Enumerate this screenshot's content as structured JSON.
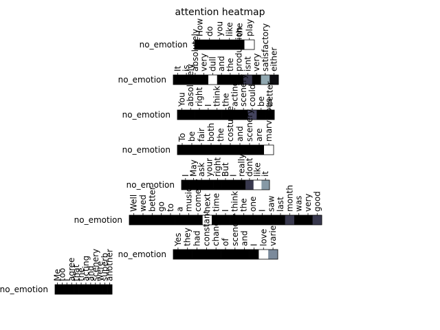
{
  "chart_data": {
    "type": "heatmap",
    "title": "attention heatmap",
    "colormap": "bone",
    "rows": [
      {
        "label": "no_emotion",
        "tokens": [
          "How",
          "do",
          "you",
          "like",
          "the",
          "play"
        ],
        "values": [
          0,
          0,
          0,
          0,
          0,
          1
        ]
      },
      {
        "label": "no_emotion",
        "tokens": [
          "It",
          "is",
          "absolutely",
          "very",
          "dull",
          "and",
          "the",
          "production",
          "isnt",
          "very",
          "satisfactory",
          "either"
        ],
        "values": [
          0,
          0,
          0,
          0,
          1,
          0,
          0,
          0,
          0.25,
          0,
          0.65,
          0.05
        ]
      },
      {
        "label": "no_emotion",
        "tokens": [
          "You",
          "absolutely",
          "right",
          "I",
          "think",
          "the",
          "acting",
          "scenery",
          "could",
          "be",
          "better"
        ],
        "values": [
          0,
          0,
          0,
          0,
          0,
          0,
          0,
          0,
          0.3,
          0,
          0
        ]
      },
      {
        "label": "no_emotion",
        "tokens": [
          "To",
          "be",
          "fair",
          "both",
          "the",
          "costume",
          "and",
          "scenery",
          "are",
          "marvelous"
        ],
        "values": [
          0,
          0,
          0,
          0,
          0,
          0,
          0,
          0,
          0,
          1
        ]
      },
      {
        "label": "no_emotion",
        "tokens": [
          "I",
          "May",
          "ask",
          "your",
          "right",
          "But",
          "I",
          "really",
          "dont",
          "like",
          "it"
        ],
        "values": [
          0,
          0,
          0,
          0,
          0,
          0,
          0,
          0,
          0.25,
          1,
          0.6
        ]
      },
      {
        "label": "no_emotion",
        "tokens": [
          "Well",
          "wed",
          "better",
          "go",
          "to",
          "a",
          "musical",
          "comedy",
          "next",
          "time",
          "I",
          "think",
          "the",
          "one",
          "I",
          "saw",
          "last",
          "month",
          "was",
          "very",
          "good"
        ],
        "values": [
          0,
          0,
          0,
          0,
          0,
          0,
          0,
          0,
          1,
          0,
          0,
          0,
          0,
          0,
          0,
          0,
          0,
          0.25,
          0,
          0,
          0.25
        ]
      },
      {
        "label": "no_emotion",
        "tokens": [
          "Yes",
          "they",
          "had",
          "constant",
          "change",
          "of",
          "scenery",
          "and",
          "I",
          "love",
          "variety"
        ],
        "values": [
          0,
          0,
          0,
          0,
          0,
          0,
          0,
          0,
          0,
          1,
          0.55
        ]
      },
      {
        "label": "no_emotion",
        "tokens": [
          "Me",
          "too",
          "I",
          "agree",
          "that",
          "the",
          "acting",
          "and",
          "scenery",
          "were",
          "superb",
          "another"
        ],
        "values": [
          0,
          0,
          0,
          0,
          0,
          0,
          0,
          0,
          0,
          0,
          0,
          0
        ]
      }
    ]
  }
}
